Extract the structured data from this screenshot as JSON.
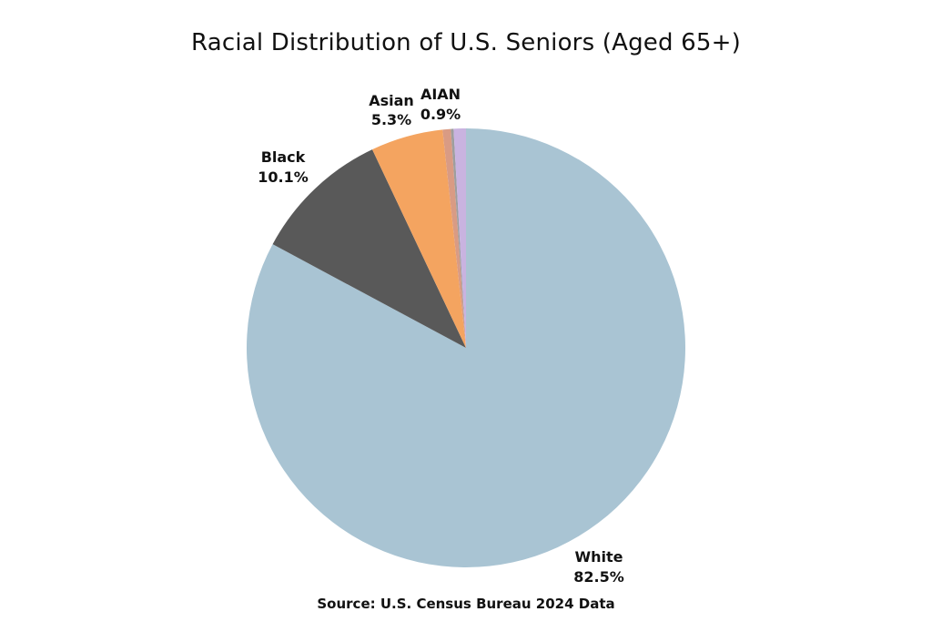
{
  "chart_data": {
    "type": "pie",
    "title": "Racial Distribution of U.S. Seniors (Aged 65+)",
    "slices": [
      {
        "key": "white",
        "label": "White",
        "value": 82.5,
        "value_label": "82.5%",
        "color": "#a9c4d3"
      },
      {
        "key": "black",
        "label": "Black",
        "value": 10.1,
        "value_label": "10.1%",
        "color": "#595959"
      },
      {
        "key": "asian",
        "label": "Asian",
        "value": 5.3,
        "value_label": "5.3%",
        "color": "#f4a460"
      },
      {
        "key": "other1",
        "label": "",
        "value": 0.6,
        "value_label": "",
        "color": "#d99b84"
      },
      {
        "key": "other2",
        "label": "",
        "value": 0.2,
        "value_label": "",
        "color": "#9e9e9e"
      },
      {
        "key": "aian",
        "label": "AIAN",
        "value": 0.9,
        "value_label": "0.9%",
        "color": "#c9b3e0"
      }
    ]
  },
  "source": "Source: U.S. Census Bureau 2024 Data"
}
